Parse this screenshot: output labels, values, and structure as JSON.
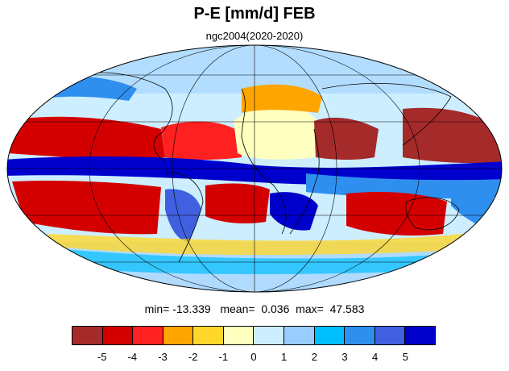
{
  "title": "P-E [mm/d] FEB",
  "subtitle": "ngc2004(2020-2020)",
  "stats": {
    "min_label": "min=",
    "min_value": "-13.339",
    "mean_label": "mean=",
    "mean_value": "0.036",
    "max_label": "max=",
    "max_value": "47.583"
  },
  "colorbar": {
    "colors": [
      "#a52a2a",
      "#d40000",
      "#ff2020",
      "#ffa500",
      "#ffd72b",
      "#ffffc0",
      "#cceeff",
      "#99ccff",
      "#00bfff",
      "#2f8fef",
      "#4060e0",
      "#0000cd"
    ],
    "tick_labels": [
      "-5",
      "-4",
      "-3",
      "-2",
      "-1",
      "0",
      "1",
      "2",
      "3",
      "4",
      "5"
    ]
  },
  "map": {
    "projection": "mollweide",
    "ocean_background": "#cceeff",
    "coastline_color": "#000000",
    "graticule_color": "#000000"
  }
}
